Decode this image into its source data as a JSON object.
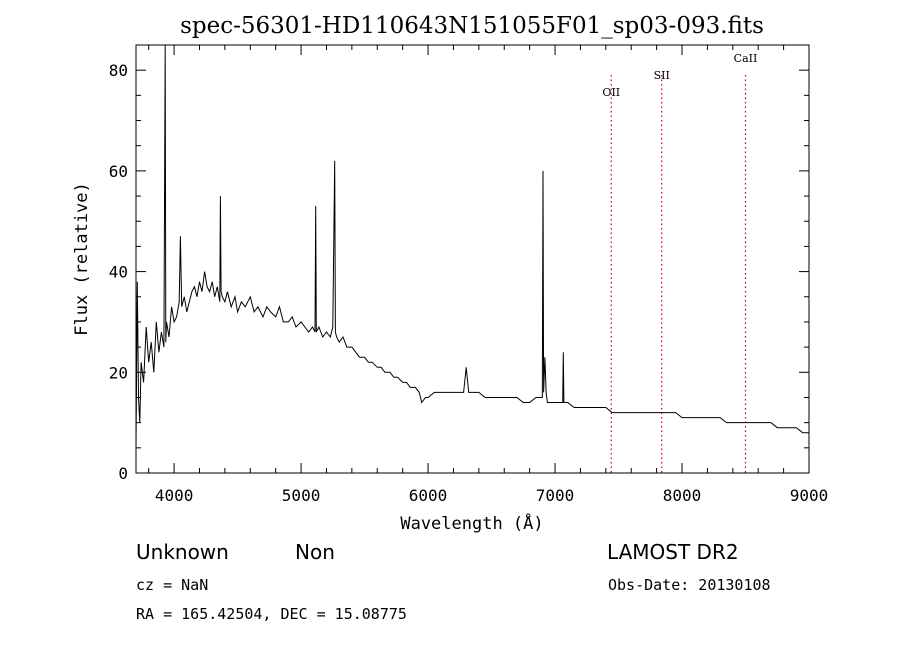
{
  "chart_data": {
    "type": "line",
    "title": "spec-56301-HD110643N151055F01_sp03-093.fits",
    "xlabel": "Wavelength (Å)",
    "ylabel": "Flux (relative)",
    "xlim": [
      3700,
      9000
    ],
    "ylim": [
      0,
      85
    ],
    "x_ticks": [
      4000,
      5000,
      6000,
      7000,
      8000,
      9000
    ],
    "y_ticks": [
      0,
      20,
      40,
      60,
      80
    ],
    "grid": false,
    "line_color": "#000000",
    "marker_color": "#cc0000",
    "series": [
      {
        "x": [
          3700,
          3710,
          3720,
          3730,
          3740,
          3760,
          3780,
          3800,
          3820,
          3840,
          3860,
          3880,
          3900,
          3920,
          3930,
          3935,
          3940,
          3960,
          3980,
          4000,
          4020,
          4040,
          4050,
          4060,
          4080,
          4100,
          4120,
          4140,
          4160,
          4180,
          4200,
          4220,
          4240,
          4260,
          4280,
          4300,
          4320,
          4340,
          4360,
          4365,
          4370,
          4380,
          4400,
          4420,
          4450,
          4480,
          4500,
          4530,
          4560,
          4600,
          4630,
          4660,
          4700,
          4730,
          4760,
          4800,
          4830,
          4860,
          4900,
          4930,
          4960,
          5000,
          5030,
          5060,
          5090,
          5110,
          5115,
          5120,
          5140,
          5170,
          5200,
          5230,
          5250,
          5265,
          5270,
          5280,
          5300,
          5330,
          5360,
          5400,
          5430,
          5460,
          5500,
          5530,
          5560,
          5600,
          5630,
          5660,
          5700,
          5730,
          5760,
          5800,
          5830,
          5860,
          5900,
          5930,
          5950,
          5980,
          6000,
          6050,
          6100,
          6150,
          6200,
          6250,
          6280,
          6300,
          6320,
          6350,
          6400,
          6450,
          6500,
          6550,
          6600,
          6650,
          6700,
          6750,
          6800,
          6850,
          6880,
          6900,
          6905,
          6910,
          6920,
          6930,
          6940,
          6960,
          7000,
          7040,
          7060,
          7065,
          7070,
          7080,
          7100,
          7150,
          7200,
          7250,
          7300,
          7350,
          7400,
          7450,
          7500,
          7550,
          7600,
          7650,
          7700,
          7750,
          7800,
          7850,
          7900,
          7950,
          8000,
          8050,
          8100,
          8150,
          8200,
          8250,
          8300,
          8350,
          8400,
          8450,
          8500,
          8550,
          8600,
          8650,
          8700,
          8750,
          8800,
          8850,
          8900,
          8950,
          9000
        ],
        "y": [
          5,
          38,
          15,
          10,
          22,
          18,
          29,
          22,
          26,
          20,
          30,
          24,
          28,
          25,
          85,
          26,
          30,
          27,
          33,
          30,
          31,
          34,
          47,
          33,
          35,
          32,
          34,
          36,
          37,
          35,
          38,
          36,
          40,
          37,
          36,
          38,
          35,
          37,
          34,
          55,
          36,
          35,
          34,
          36,
          33,
          35,
          32,
          34,
          33,
          35,
          32,
          33,
          31,
          33,
          32,
          31,
          33,
          30,
          30,
          31,
          29,
          30,
          29,
          28,
          29,
          28,
          53,
          28,
          29,
          27,
          28,
          27,
          29,
          62,
          28,
          27,
          26,
          27,
          25,
          25,
          24,
          23,
          23,
          22,
          22,
          21,
          21,
          20,
          20,
          19,
          19,
          18,
          18,
          17,
          17,
          16,
          14,
          15,
          15,
          16,
          16,
          16,
          16,
          16,
          16,
          21,
          16,
          16,
          16,
          15,
          15,
          15,
          15,
          15,
          15,
          14,
          14,
          15,
          15,
          15,
          60,
          16,
          23,
          16,
          14,
          14,
          14,
          14,
          14,
          24,
          14,
          14,
          14,
          13,
          13,
          13,
          13,
          13,
          13,
          12,
          12,
          12,
          12,
          12,
          12,
          12,
          12,
          12,
          12,
          12,
          11,
          11,
          11,
          11,
          11,
          11,
          11,
          10,
          10,
          10,
          10,
          10,
          10,
          10,
          10,
          9,
          9,
          9,
          9,
          8,
          8
        ]
      }
    ],
    "line_markers": [
      {
        "label": "OII",
        "x": 7443
      },
      {
        "label": "SII",
        "x": 7840
      },
      {
        "label": "CaII",
        "x": 8500
      }
    ]
  },
  "info": {
    "object_class": "Unknown",
    "subclass": "Non",
    "survey": "LAMOST DR2",
    "cz": "cz = NaN",
    "obs_date": "Obs-Date: 20130108",
    "coords": "RA = 165.42504, DEC =  15.08775"
  }
}
